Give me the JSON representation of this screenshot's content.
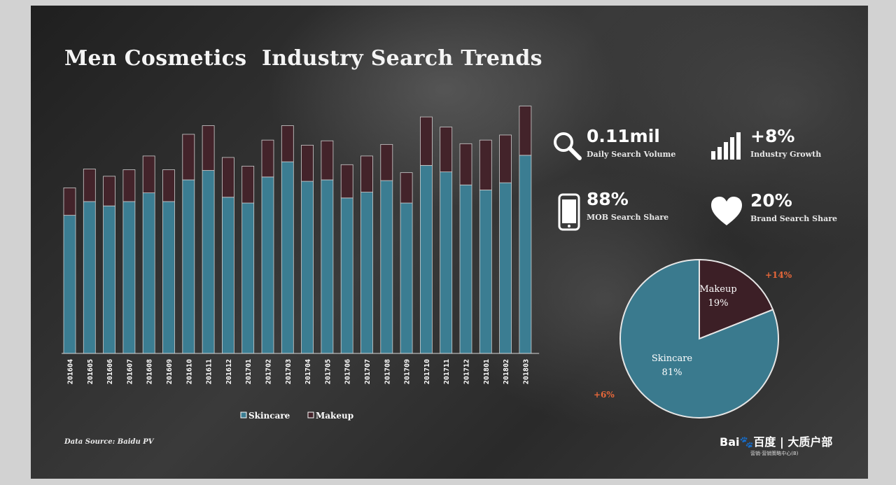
{
  "title": "Men Cosmetics  Industry Search Trends",
  "stats": [
    {
      "icon": "search-icon",
      "value": "0.11mil",
      "label": "Daily Search Volume"
    },
    {
      "icon": "bar-growth-icon",
      "value": "+8%",
      "label": "Industry  Growth"
    },
    {
      "icon": "phone-icon",
      "value": "88%",
      "label": "MOB Search Share"
    },
    {
      "icon": "heart-icon",
      "value": "20%",
      "label": "Brand Search Share"
    }
  ],
  "chart_data": [
    {
      "type": "bar",
      "stacked": true,
      "title": "",
      "xlabel": "",
      "ylabel": "",
      "ylim": [
        0,
        360
      ],
      "categories": [
        "201604",
        "201605",
        "201606",
        "201607",
        "201608",
        "201609",
        "201610",
        "201611",
        "201612",
        "201701",
        "201702",
        "201703",
        "201704",
        "201705",
        "201706",
        "201707",
        "201708",
        "201709",
        "201710",
        "201711",
        "201712",
        "201801",
        "201802",
        "201803"
      ],
      "series": [
        {
          "name": "Skincare",
          "color": "#3b7d92",
          "values": [
            191,
            210,
            204,
            210,
            222,
            210,
            240,
            253,
            216,
            208,
            244,
            265,
            238,
            240,
            215,
            223,
            239,
            208,
            260,
            251,
            233,
            226,
            236,
            274
          ]
        },
        {
          "name": "Makeup",
          "color": "#43232a",
          "values": [
            38,
            45,
            41,
            44,
            51,
            44,
            63,
            62,
            55,
            51,
            51,
            50,
            50,
            54,
            46,
            50,
            50,
            42,
            67,
            62,
            57,
            69,
            66,
            68
          ]
        }
      ],
      "legend": {
        "position": "bottom",
        "items": [
          "Skincare",
          "Makeup"
        ]
      }
    },
    {
      "type": "pie",
      "slices": [
        {
          "name": "Makeup",
          "label": "Makeup",
          "percent_label": "19%",
          "value": 19,
          "color": "#3c1f26",
          "growth": "+14%"
        },
        {
          "name": "Skincare",
          "label": "Skincare",
          "percent_label": "81%",
          "value": 81,
          "color": "#3a7a8e",
          "growth": "+6%"
        }
      ]
    }
  ],
  "source": "Data Source: Baidu PV",
  "logo": {
    "main": "Bai🐾百度 | 大质户部",
    "sub": "营销·营销策略中心(B)"
  },
  "colors": {
    "accent": "#e8683a",
    "skincare": "#3b7d92",
    "makeup": "#43232a"
  }
}
